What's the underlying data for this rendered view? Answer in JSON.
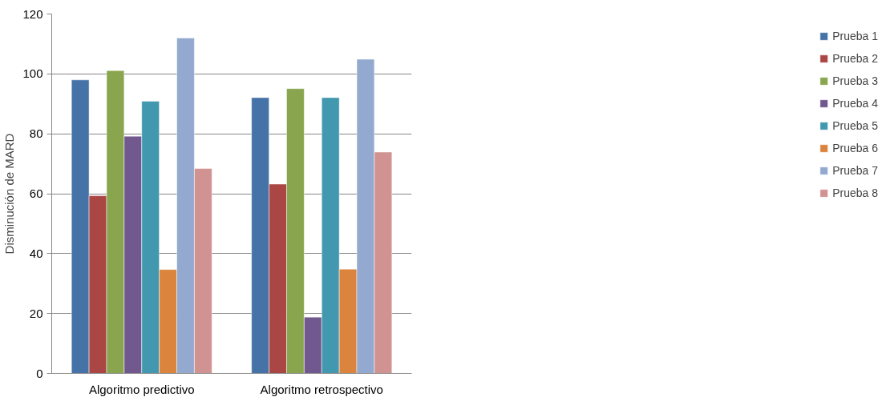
{
  "chart_data": {
    "type": "bar",
    "ylabel": "Disminución de MARD",
    "categories": [
      "Algoritmo predictivo",
      "Algoritmo retrospectivo"
    ],
    "series": [
      {
        "name": "Prueba 1",
        "color": "#4572a7",
        "values": [
          98.0,
          92.1
        ]
      },
      {
        "name": "Prueba 2",
        "color": "#aa4643",
        "values": [
          59.3,
          63.2
        ]
      },
      {
        "name": "Prueba 3",
        "color": "#89a54e",
        "values": [
          101.1,
          95.1
        ]
      },
      {
        "name": "Prueba 4",
        "color": "#71588f",
        "values": [
          79.2,
          18.8
        ]
      },
      {
        "name": "Prueba 5",
        "color": "#4198af",
        "values": [
          90.9,
          92.1
        ]
      },
      {
        "name": "Prueba 6",
        "color": "#db843d",
        "values": [
          34.7,
          34.8
        ]
      },
      {
        "name": "Prueba 7",
        "color": "#93a9cf",
        "values": [
          112.0,
          104.9
        ]
      },
      {
        "name": "Prueba 8",
        "color": "#d19392",
        "values": [
          68.4,
          73.9
        ]
      }
    ],
    "ylim": [
      0,
      120
    ],
    "yticks": [
      0,
      20,
      40,
      60,
      80,
      100,
      120
    ],
    "grid": "y",
    "legend": "right"
  }
}
